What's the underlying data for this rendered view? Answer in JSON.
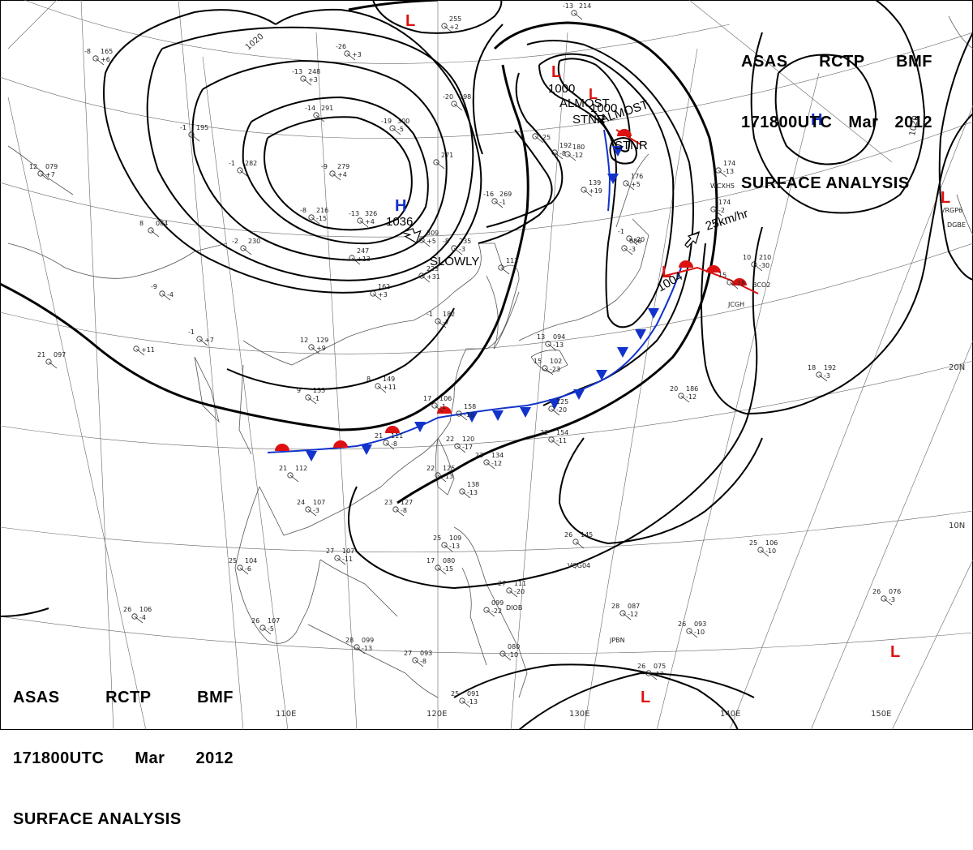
{
  "header": {
    "row1": [
      "ASAS",
      "RCTP",
      "BMF"
    ],
    "row2": [
      "171800UTC",
      "Mar",
      "2012"
    ],
    "row3": "SURFACE ANALYSIS"
  },
  "grid_labels": {
    "lon": [
      "110E",
      "120E",
      "130E",
      "140E",
      "150E"
    ],
    "lat": [
      "20N",
      "10N"
    ]
  },
  "isobar_labels": [
    "1020",
    "1020"
  ],
  "centers": [
    {
      "type": "H",
      "value": "1036",
      "color": "#1133cc"
    },
    {
      "type": "H",
      "value": "",
      "color": "#1133cc"
    },
    {
      "type": "L",
      "value": "1000",
      "color": "#dd1111"
    },
    {
      "type": "L",
      "value": "1000",
      "color": "#dd1111"
    },
    {
      "type": "L",
      "value": "1004",
      "color": "#dd1111"
    },
    {
      "type": "L",
      "value": "",
      "color": "#dd1111"
    },
    {
      "type": "L",
      "value": "",
      "color": "#dd1111"
    },
    {
      "type": "L",
      "value": "",
      "color": "#dd1111"
    },
    {
      "type": "L",
      "value": "",
      "color": "#dd1111"
    }
  ],
  "annotations": {
    "slowly": "SLOWLY",
    "almost_stnr_1": [
      "ALMOST",
      "STNR"
    ],
    "almost_stnr_2": [
      "ALMOST",
      "STNR"
    ],
    "speed": "25km/hr"
  },
  "stations": [
    {
      "t": "-8",
      "p": "165",
      "d": "+6"
    },
    {
      "t": "-13",
      "p": "248",
      "d": "+3"
    },
    {
      "t": "-26",
      "p": "",
      "d": "+3"
    },
    {
      "t": "-14",
      "p": "291",
      "d": ""
    },
    {
      "t": "-19",
      "p": "300",
      "d": "-5"
    },
    {
      "t": "-20",
      "p": "298",
      "d": ""
    },
    {
      "t": "-1",
      "p": "195",
      "d": ""
    },
    {
      "t": "-1",
      "p": "282",
      "d": ""
    },
    {
      "t": "-9",
      "p": "279",
      "d": "+4"
    },
    {
      "t": "12",
      "p": "079",
      "d": "+7"
    },
    {
      "t": "",
      "p": "271",
      "d": ""
    },
    {
      "t": "-16",
      "p": "269",
      "d": "-1"
    },
    {
      "t": "-8",
      "p": "216",
      "d": "-15"
    },
    {
      "t": "-13",
      "p": "326",
      "d": "+4"
    },
    {
      "t": "",
      "p": "309",
      "d": "+5"
    },
    {
      "t": "-8",
      "p": "235",
      "d": "-3"
    },
    {
      "t": "8",
      "p": "084",
      "d": ""
    },
    {
      "t": "-2",
      "p": "230",
      "d": ""
    },
    {
      "t": "",
      "p": "247",
      "d": "+13"
    },
    {
      "t": "",
      "p": "223",
      "d": "+31"
    },
    {
      "t": "",
      "p": "113",
      "d": ""
    },
    {
      "t": "-9",
      "p": "",
      "d": "-4"
    },
    {
      "t": "",
      "p": "162",
      "d": "+3"
    },
    {
      "t": "-1",
      "p": "",
      "d": "+7"
    },
    {
      "t": "12",
      "p": "129",
      "d": "+9"
    },
    {
      "t": "",
      "p": "",
      "d": "+11"
    },
    {
      "t": "21",
      "p": "097",
      "d": ""
    },
    {
      "t": "8",
      "p": "149",
      "d": "+11"
    },
    {
      "t": "9",
      "p": "133",
      "d": "-1"
    },
    {
      "t": "-1",
      "p": "182",
      "d": "-7"
    },
    {
      "t": "13",
      "p": "094",
      "d": "-13"
    },
    {
      "t": "15",
      "p": "102",
      "d": "-23"
    },
    {
      "t": "17",
      "p": "106",
      "d": "-1"
    },
    {
      "t": "",
      "p": "158",
      "d": "-16"
    },
    {
      "t": "",
      "p": "125",
      "d": "-20"
    },
    {
      "t": "21",
      "p": "111",
      "d": "-8"
    },
    {
      "t": "22",
      "p": "120",
      "d": "-17"
    },
    {
      "t": "22",
      "p": "125",
      "d": "-13"
    },
    {
      "t": "23",
      "p": "134",
      "d": "-12"
    },
    {
      "t": "22",
      "p": "154",
      "d": "-11"
    },
    {
      "t": "21",
      "p": "112",
      "d": ""
    },
    {
      "t": "23",
      "p": "127",
      "d": "-8"
    },
    {
      "t": "",
      "p": "138",
      "d": "-13"
    },
    {
      "t": "24",
      "p": "107",
      "d": "-3"
    },
    {
      "t": "27",
      "p": "107",
      "d": "-11"
    },
    {
      "t": "25",
      "p": "104",
      "d": "-6"
    },
    {
      "t": "25",
      "p": "109",
      "d": "-13"
    },
    {
      "t": "17",
      "p": "080",
      "d": "-15"
    },
    {
      "t": "26",
      "p": "145",
      "d": ""
    },
    {
      "t": "27",
      "p": "111",
      "d": "-20"
    },
    {
      "t": "26",
      "p": "106",
      "d": "-4"
    },
    {
      "t": "26",
      "p": "107",
      "d": "-5"
    },
    {
      "t": "",
      "p": "099",
      "d": "-22"
    },
    {
      "t": "28",
      "p": "087",
      "d": "-12"
    },
    {
      "t": "28",
      "p": "099",
      "d": "-13"
    },
    {
      "t": "27",
      "p": "093",
      "d": "-8"
    },
    {
      "t": "",
      "p": "080",
      "d": "-10"
    },
    {
      "t": "26",
      "p": "093",
      "d": "-10"
    },
    {
      "t": "25",
      "p": "091",
      "d": "-13"
    },
    {
      "t": "26",
      "p": "075",
      "d": "-12"
    },
    {
      "t": "25",
      "p": "106",
      "d": "-10"
    },
    {
      "t": "26",
      "p": "076",
      "d": "-3"
    },
    {
      "t": "20",
      "p": "186",
      "d": "-12"
    },
    {
      "t": "18",
      "p": "192",
      "d": "-3"
    },
    {
      "t": "",
      "p": "174",
      "d": "-13"
    },
    {
      "t": "",
      "p": "086",
      "d": "-3"
    },
    {
      "t": "",
      "p": "180",
      "d": "-12"
    },
    {
      "t": "",
      "p": "174",
      "d": "-2"
    },
    {
      "t": "10",
      "p": "210",
      "d": "-30"
    },
    {
      "t": "15",
      "p": "",
      "d": "-18"
    },
    {
      "t": "",
      "p": "192",
      "d": "-8"
    },
    {
      "t": "",
      "p": "139",
      "d": "+19"
    },
    {
      "t": "",
      "p": "176",
      "d": "+5"
    },
    {
      "t": "-13",
      "p": "214",
      "d": ""
    },
    {
      "t": "",
      "p": "255",
      "d": "+2"
    },
    {
      "t": "",
      "p": "",
      "d": "-25"
    },
    {
      "t": "-1",
      "p": "",
      "d": "-20"
    }
  ],
  "ship_ids": [
    "VQG04",
    "DIOB",
    "JPBN",
    "JCGH",
    "BCO2",
    "WCXH5",
    "VRGP6",
    "DGBE"
  ],
  "colors": {
    "warm": "#dd1111",
    "cold": "#1133cc",
    "isobar": "#000000"
  }
}
